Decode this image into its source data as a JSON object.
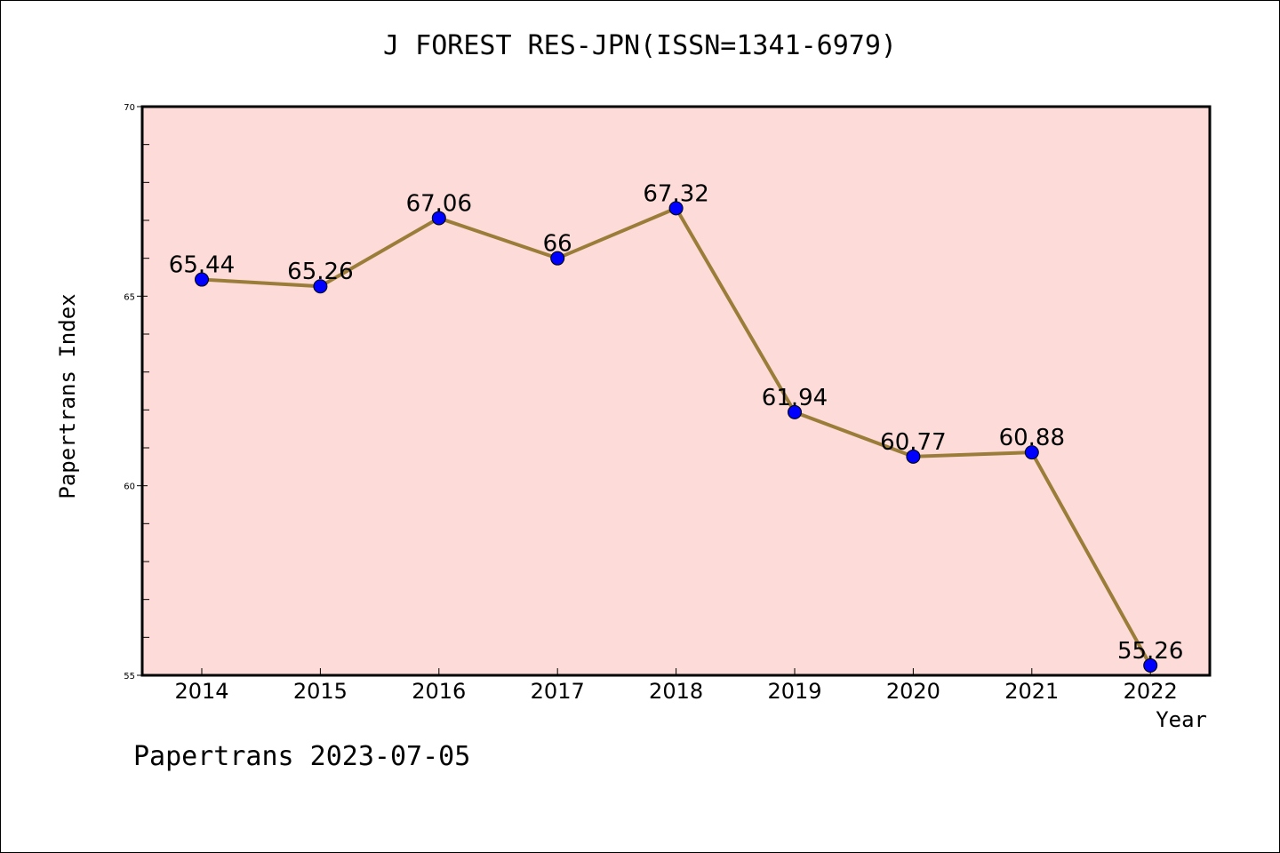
{
  "chart_data": {
    "type": "line",
    "title": "J FOREST RES-JPN(ISSN=1341-6979)",
    "xlabel": "Year",
    "ylabel": "Papertrans Index",
    "categories": [
      "2014",
      "2015",
      "2016",
      "2017",
      "2018",
      "2019",
      "2020",
      "2021",
      "2022"
    ],
    "values": [
      65.44,
      65.26,
      67.06,
      66,
      67.32,
      61.94,
      60.77,
      60.88,
      55.26
    ],
    "data_labels": [
      "65.44",
      "65.26",
      "67.06",
      "66",
      "67.32",
      "61.94",
      "60.77",
      "60.88",
      "55.26"
    ],
    "ylim": [
      55,
      70
    ],
    "yticks": [
      "55",
      "60",
      "65",
      "70"
    ],
    "grid": false,
    "colors": {
      "plot_background": "#fddbd8",
      "line": "#9b7d3a",
      "marker": "#0000ff"
    }
  },
  "footer": "Papertrans 2023-07-05"
}
